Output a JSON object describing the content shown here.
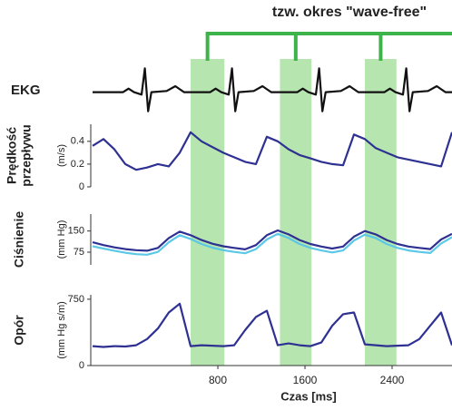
{
  "chart_data": [
    {
      "type": "line",
      "ylabel": "EKG",
      "annotation": "tzw. okres \"wave-free\"",
      "bands": [
        [
          550,
          860
        ],
        [
          1370,
          1660
        ],
        [
          2150,
          2440
        ]
      ],
      "band_color": "#9ddc95",
      "bracket_color": "#3cb44a",
      "xlim": [
        -367,
        2950
      ],
      "ylim": [
        -1,
        1.2
      ],
      "x": [
        -350,
        -70,
        -20,
        30,
        100,
        130,
        160,
        190,
        330,
        410,
        490,
        730,
        780,
        830,
        900,
        930,
        960,
        990,
        1130,
        1210,
        1290,
        1530,
        1580,
        1630,
        1700,
        1730,
        1760,
        1790,
        1930,
        2010,
        2090,
        2330,
        2380,
        2430,
        2500,
        2530,
        2560,
        2590,
        2730,
        2810,
        2890,
        2950
      ],
      "series": [
        {
          "color": "#111111",
          "values": [
            0,
            0,
            0.15,
            0,
            -0.1,
            1,
            -0.8,
            0,
            0.05,
            0.25,
            0,
            0,
            0.15,
            0,
            -0.1,
            1,
            -0.8,
            0,
            0.05,
            0.25,
            0,
            0,
            0.15,
            0,
            -0.1,
            1,
            -0.8,
            0,
            0.05,
            0.25,
            0,
            0,
            0.15,
            0,
            -0.1,
            1,
            -0.8,
            0,
            0.05,
            0.25,
            0,
            0
          ]
        }
      ]
    },
    {
      "type": "line",
      "ylabel": [
        "Prędkość",
        "przepływu"
      ],
      "unit": "(m/s)",
      "xlim": [
        -367,
        2950
      ],
      "ylim": [
        0,
        0.55
      ],
      "yticks": [
        0,
        0.2,
        0.4
      ],
      "x": [
        -350,
        -250,
        -150,
        -50,
        50,
        150,
        250,
        350,
        450,
        550,
        650,
        750,
        850,
        950,
        1050,
        1150,
        1250,
        1350,
        1450,
        1550,
        1650,
        1750,
        1850,
        1950,
        2050,
        2150,
        2250,
        2350,
        2450,
        2550,
        2650,
        2750,
        2850,
        2950
      ],
      "series": [
        {
          "color": "#2e3192",
          "values": [
            0.36,
            0.42,
            0.33,
            0.2,
            0.15,
            0.17,
            0.2,
            0.18,
            0.3,
            0.48,
            0.4,
            0.35,
            0.3,
            0.26,
            0.22,
            0.2,
            0.44,
            0.4,
            0.33,
            0.28,
            0.25,
            0.22,
            0.2,
            0.19,
            0.46,
            0.42,
            0.34,
            0.3,
            0.26,
            0.24,
            0.22,
            0.2,
            0.18,
            0.48
          ]
        }
      ]
    },
    {
      "type": "line",
      "ylabel": "Ciśnienie",
      "unit": "(mm Hg)",
      "xlim": [
        -367,
        2950
      ],
      "ylim": [
        30,
        210
      ],
      "yticks": [
        75,
        150
      ],
      "x": [
        -350,
        -250,
        -150,
        -50,
        50,
        150,
        250,
        350,
        450,
        550,
        650,
        750,
        850,
        950,
        1050,
        1150,
        1250,
        1350,
        1450,
        1550,
        1650,
        1750,
        1850,
        1950,
        2050,
        2150,
        2250,
        2350,
        2450,
        2550,
        2650,
        2750,
        2850,
        2950
      ],
      "series": [
        {
          "color": "#2e3192",
          "values": [
            110,
            100,
            92,
            86,
            82,
            80,
            90,
            125,
            148,
            135,
            118,
            105,
            96,
            90,
            85,
            100,
            135,
            152,
            138,
            118,
            104,
            95,
            88,
            95,
            130,
            150,
            138,
            118,
            104,
            95,
            90,
            86,
            120,
            140
          ]
        },
        {
          "color": "#5bc8e6",
          "values": [
            96,
            88,
            80,
            73,
            68,
            66,
            76,
            110,
            135,
            122,
            104,
            91,
            82,
            76,
            71,
            86,
            120,
            140,
            125,
            104,
            90,
            81,
            74,
            81,
            116,
            137,
            125,
            104,
            90,
            81,
            76,
            72,
            106,
            128
          ]
        }
      ]
    },
    {
      "type": "line",
      "ylabel": "Opór",
      "unit": "(mm Hg s/m)",
      "xlabel": "Czas [ms]",
      "xlim": [
        -367,
        2950
      ],
      "ylim": [
        0,
        800
      ],
      "yticks": [
        0,
        750
      ],
      "xticks": [
        800,
        1600,
        2400
      ],
      "x": [
        -350,
        -250,
        -150,
        -50,
        50,
        150,
        250,
        350,
        450,
        550,
        650,
        750,
        850,
        950,
        1050,
        1150,
        1250,
        1350,
        1450,
        1550,
        1650,
        1750,
        1850,
        1950,
        2050,
        2150,
        2250,
        2350,
        2450,
        2550,
        2650,
        2750,
        2850,
        2950
      ],
      "series": [
        {
          "color": "#2e3192",
          "values": [
            220,
            210,
            220,
            215,
            230,
            300,
            420,
            600,
            700,
            220,
            230,
            225,
            220,
            230,
            400,
            550,
            620,
            230,
            250,
            230,
            220,
            260,
            450,
            580,
            600,
            240,
            230,
            220,
            225,
            230,
            300,
            450,
            600,
            230
          ]
        }
      ]
    }
  ]
}
